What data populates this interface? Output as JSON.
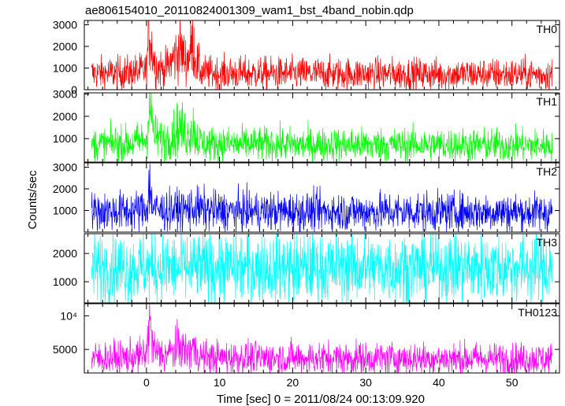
{
  "chart_data": {
    "type": "line",
    "title": "ae806154010_20110824001309_wam1_bst_4band_nobin.qdp",
    "xlabel": "Time [sec] 0 = 2011/08/24 00:13:09.920",
    "ylabel": "Counts/sec",
    "xlim": [
      -8.5,
      56.5
    ],
    "x_ticks": [
      0,
      10,
      20,
      30,
      40,
      50
    ],
    "grid": false,
    "panels": [
      {
        "name": "TH0",
        "color": "#ff0000",
        "ylim": [
          0,
          3200
        ],
        "yticks": [
          0,
          1000,
          2000,
          3000
        ],
        "yticklabels": [
          "0",
          "1000",
          "2000",
          "3000"
        ],
        "series": {
          "x": [
            -7.5,
            -5,
            -2.5,
            0,
            0.4,
            0.7,
            1.2,
            2.5,
            4,
            4.5,
            5.5,
            6.4,
            6.7,
            7.5,
            10,
            20,
            30,
            40,
            50,
            55.5
          ],
          "values": [
            750,
            760,
            780,
            900,
            2900,
            2000,
            1100,
            900,
            1600,
            1900,
            1300,
            2200,
            1400,
            800,
            760,
            740,
            730,
            720,
            710,
            700
          ]
        }
      },
      {
        "name": "TH1",
        "color": "#00ff00",
        "ylim": [
          -50,
          3050
        ],
        "yticks": [
          1000,
          2000,
          3000
        ],
        "yticklabels": [
          "1000",
          "2000",
          "3000"
        ],
        "series": {
          "x": [
            -7.5,
            -5,
            -2.5,
            0,
            0.4,
            0.7,
            1.2,
            2.5,
            4,
            4.5,
            5.5,
            6.4,
            6.7,
            7.5,
            10,
            20,
            30,
            40,
            50,
            55.5
          ],
          "values": [
            750,
            760,
            780,
            950,
            2600,
            1900,
            1100,
            900,
            1300,
            1600,
            1100,
            1500,
            1100,
            800,
            760,
            740,
            730,
            720,
            710,
            700
          ]
        }
      },
      {
        "name": "TH2",
        "color": "#0000ff",
        "ylim": [
          0,
          3200
        ],
        "yticks": [
          1000,
          2000,
          3000
        ],
        "yticklabels": [
          "1000",
          "2000",
          "3000"
        ],
        "series": {
          "x": [
            -7.5,
            -5,
            -2.5,
            0,
            0.4,
            0.7,
            1.2,
            2.5,
            4,
            6.5,
            10,
            20,
            30,
            40,
            50,
            55.5
          ],
          "values": [
            950,
            960,
            970,
            1050,
            2200,
            1400,
            1050,
            980,
            1000,
            1100,
            960,
            950,
            950,
            940,
            930,
            920
          ]
        }
      },
      {
        "name": "TH3",
        "color": "#00ffff",
        "ylim": [
          250,
          2700
        ],
        "yticks": [
          1000,
          2000
        ],
        "yticklabels": [
          "1000",
          "2000"
        ],
        "series": {
          "x": [
            -7.5,
            0,
            10,
            20,
            30,
            40,
            50,
            55.5
          ],
          "values": [
            1500,
            1500,
            1500,
            1500,
            1500,
            1500,
            1500,
            1500
          ]
        }
      },
      {
        "name": "TH0123",
        "color": "#ff00ff",
        "ylim": [
          1500,
          11800
        ],
        "yticks": [
          5000,
          10000
        ],
        "yticklabels": [
          "5000",
          "10⁴"
        ],
        "series": {
          "x": [
            -7.5,
            -5,
            -2.5,
            0,
            0.4,
            0.7,
            1.2,
            2.5,
            4,
            4.5,
            5.5,
            6.4,
            6.7,
            7.5,
            10,
            20,
            30,
            40,
            50,
            55.5
          ],
          "values": [
            3700,
            3750,
            3800,
            4200,
            9500,
            6500,
            4600,
            4100,
            5000,
            5600,
            4500,
            5500,
            4500,
            3900,
            3800,
            3750,
            3700,
            3650,
            3600,
            3600
          ]
        }
      }
    ]
  }
}
